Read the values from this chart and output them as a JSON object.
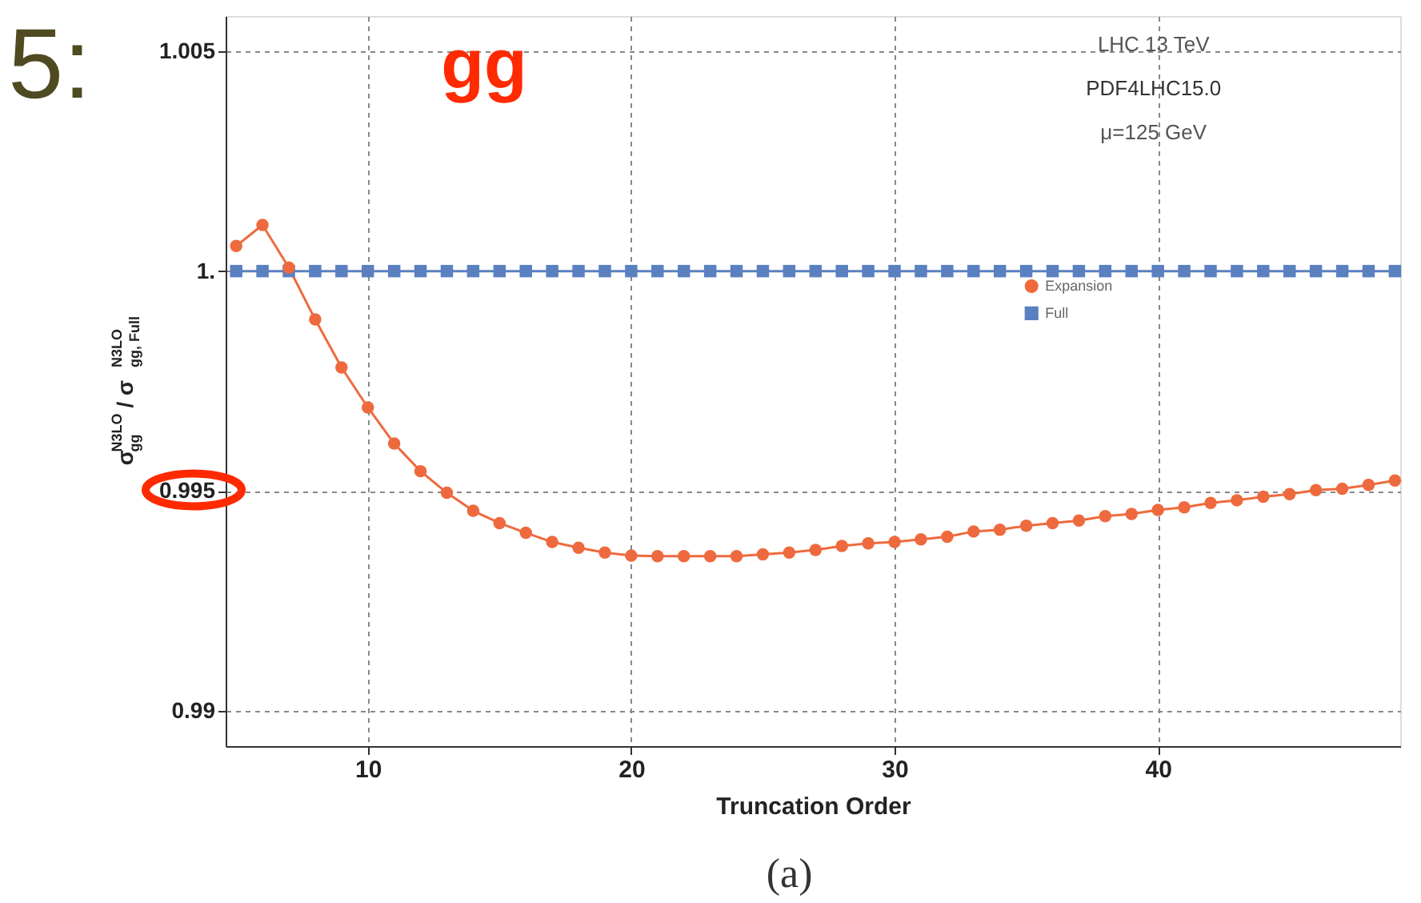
{
  "chart_data": {
    "type": "line",
    "xlabel": "Truncation Order",
    "ylabel": "σ$_{gg}$$^{N3LO}$ / σ$_{gg, Full}$$^{N3LO}$",
    "x": [
      5,
      6,
      7,
      8,
      9,
      10,
      11,
      12,
      13,
      14,
      15,
      16,
      17,
      18,
      19,
      20,
      21,
      22,
      23,
      24,
      25,
      26,
      27,
      28,
      29,
      30,
      31,
      32,
      33,
      34,
      35,
      36,
      37,
      38,
      39,
      40,
      41,
      42,
      43,
      44,
      45,
      46,
      47,
      48,
      49
    ],
    "series": [
      {
        "name": "Expansion",
        "color": "#ee6a3e",
        "marker": "circle",
        "values": [
          1.00057,
          1.00105,
          1.00008,
          0.9989,
          0.99781,
          0.9969,
          0.99608,
          0.99545,
          0.99496,
          0.99455,
          0.99427,
          0.99405,
          0.99384,
          0.99371,
          0.9936,
          0.99353,
          0.99352,
          0.99352,
          0.99352,
          0.99352,
          0.99356,
          0.9936,
          0.99366,
          0.99375,
          0.99381,
          0.99384,
          0.9939,
          0.99396,
          0.99408,
          0.99412,
          0.99421,
          0.99427,
          0.99433,
          0.99443,
          0.99448,
          0.99457,
          0.99463,
          0.99473,
          0.99479,
          0.99487,
          0.99493,
          0.99502,
          0.99505,
          0.99514,
          0.99524
        ]
      },
      {
        "name": "Full",
        "color": "#5b80c0",
        "marker": "square",
        "values": [
          1,
          1,
          1,
          1,
          1,
          1,
          1,
          1,
          1,
          1,
          1,
          1,
          1,
          1,
          1,
          1,
          1,
          1,
          1,
          1,
          1,
          1,
          1,
          1,
          1,
          1,
          1,
          1,
          1,
          1,
          1,
          1,
          1,
          1,
          1,
          1,
          1,
          1,
          1,
          1,
          1,
          1,
          1,
          1,
          1
        ]
      }
    ],
    "xlim": [
      4.6,
      49.2
    ],
    "ylim": [
      0.9892,
      1.0058
    ],
    "xticks": [
      10,
      20,
      30,
      40
    ],
    "yticks": [
      0.99,
      0.995,
      {
        "value": 1,
        "label": "1."
      },
      1.005
    ],
    "grid": true,
    "legend": "right",
    "line_style": "solid",
    "annotations": [
      "gg",
      "LHC 13 TeV",
      "PDF4LHC15.0",
      "μ=125 GeV",
      "5:",
      "(a)"
    ]
  }
}
